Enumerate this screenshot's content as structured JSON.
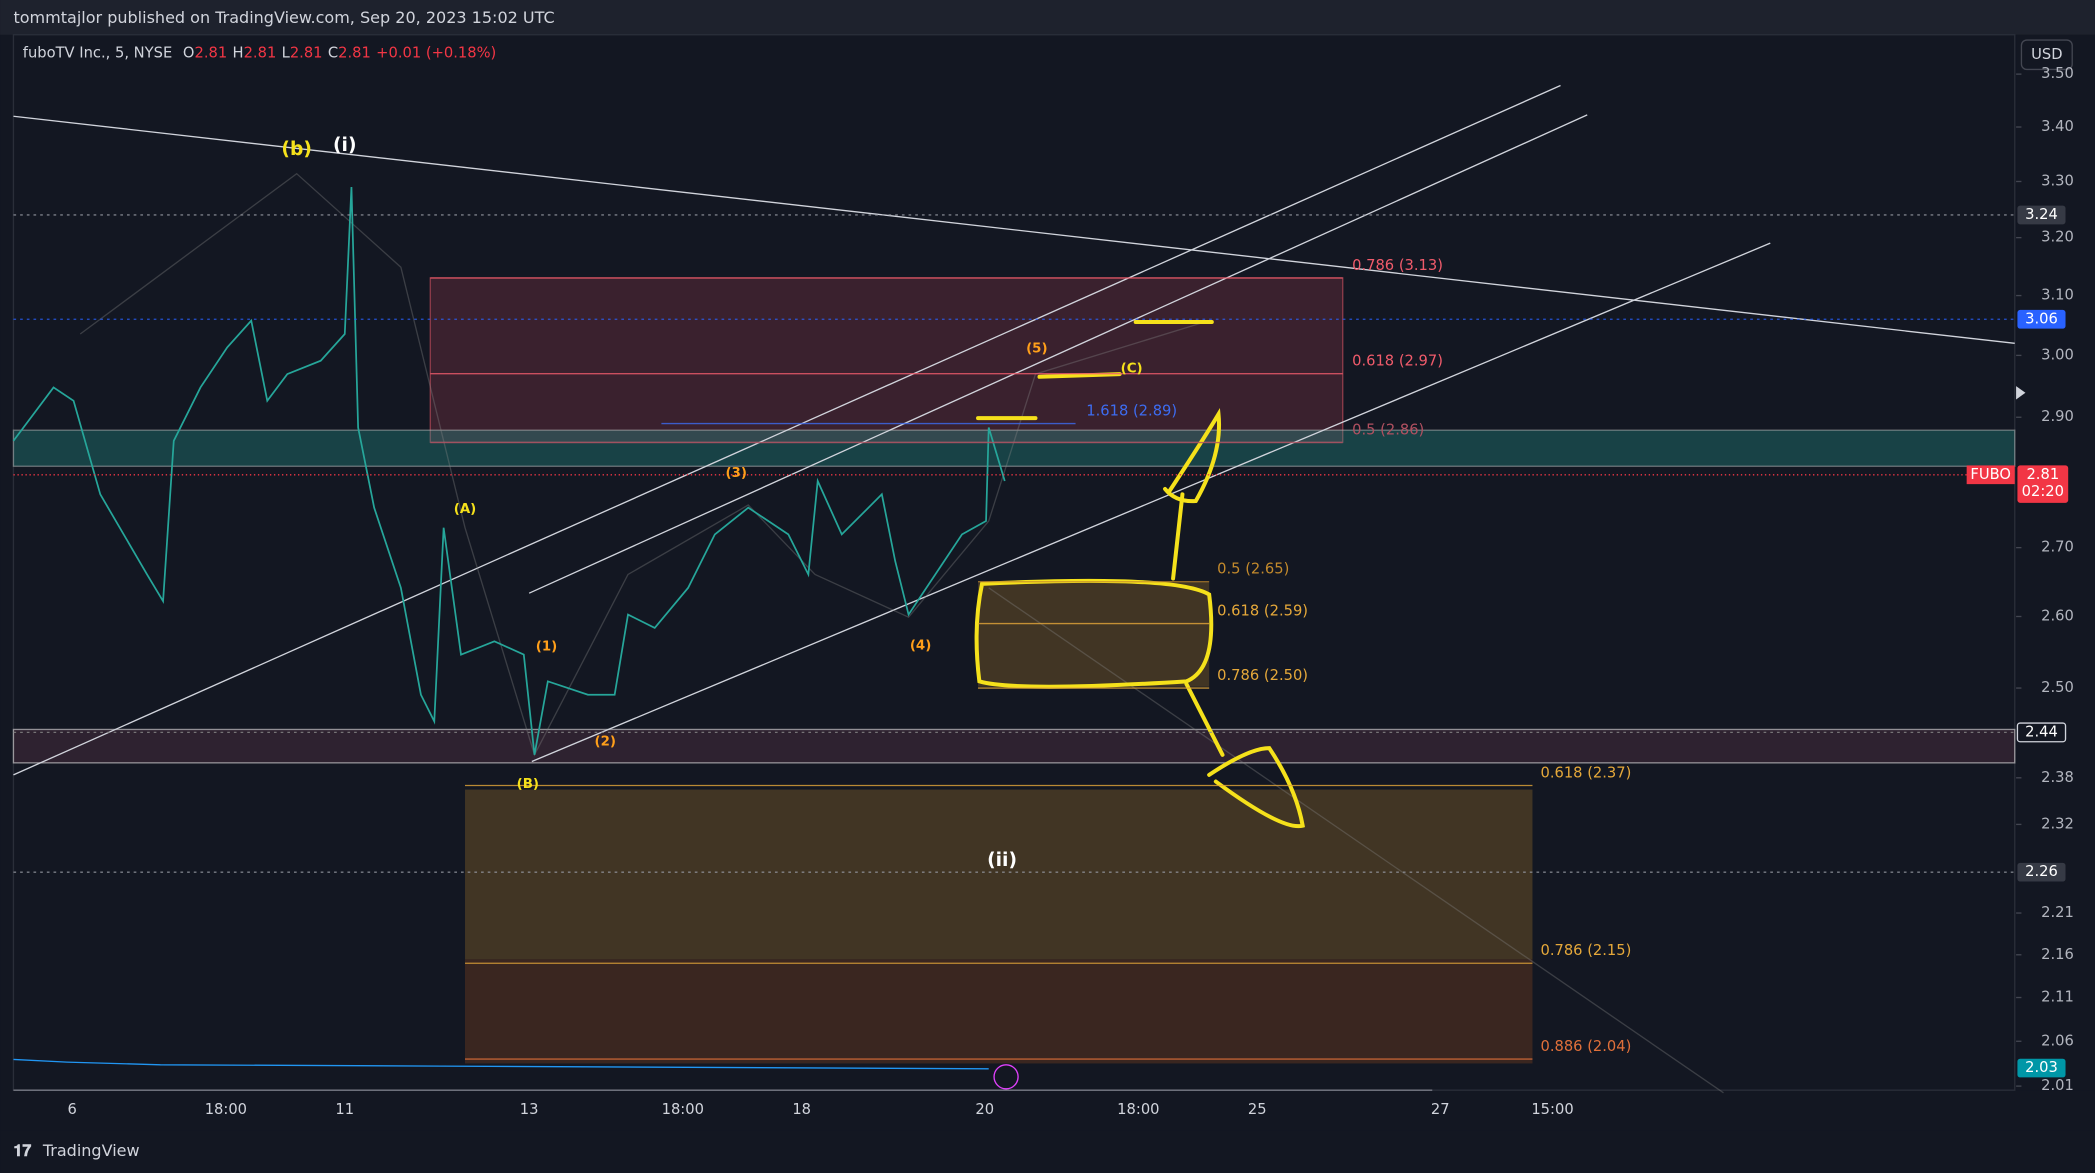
{
  "header": {
    "published": "tommtajlor published on TradingView.com, Sep 20, 2023 15:02 UTC"
  },
  "legend": {
    "symbol": "fuboTV Inc., 5, NYSE",
    "ohlc": [
      {
        "key": "O",
        "value": 2.81
      },
      {
        "key": "H",
        "value": 2.81
      },
      {
        "key": "L",
        "value": 2.81
      },
      {
        "key": "C",
        "value": 2.81
      }
    ],
    "change": "+0.01 (+0.18%)"
  },
  "currency": "USD",
  "price_axis": {
    "log_scale": true,
    "ylim": [
      2.0026,
      3.579
    ],
    "ticks": [
      {
        "value": 3.5,
        "label": "3.50"
      },
      {
        "value": 3.4,
        "label": "3.40"
      },
      {
        "value": 3.3,
        "label": "3.30"
      },
      {
        "value": 3.2,
        "label": "3.20"
      },
      {
        "value": 3.1,
        "label": "3.10"
      },
      {
        "value": 3.0,
        "label": "3.00"
      },
      {
        "value": 2.9,
        "label": "2.90"
      },
      {
        "value": 2.7,
        "label": "2.70"
      },
      {
        "value": 2.6,
        "label": "2.60"
      },
      {
        "value": 2.5,
        "label": "2.50"
      },
      2.38,
      2.32,
      2.21,
      2.16,
      2.11,
      2.06,
      2.01
    ]
  },
  "price_markers": [
    {
      "value": 3.24,
      "color": "#363a45"
    },
    {
      "value": 3.06,
      "color": "#2962ff"
    },
    {
      "value": 2.44,
      "color": "#131722"
    },
    {
      "value": 2.26,
      "color": "#363a45"
    },
    {
      "value": 2.03,
      "color": "#0097a7"
    }
  ],
  "last_price": {
    "symbol": "FUBO",
    "value": 2.81,
    "countdown": "02:20",
    "color": "#f23645"
  },
  "time_axis": {
    "ticks": [
      "6",
      "18:00",
      "11",
      "13",
      "18:00",
      "18",
      "20",
      "18:00",
      "25",
      "27",
      "15:00"
    ]
  },
  "fib_levels": [
    {
      "label": "0.786 (3.13)",
      "price": 3.13,
      "color": "#f05b6b"
    },
    {
      "label": "0.618 (2.97)",
      "price": 2.97,
      "color": "#f05b6b"
    },
    {
      "label": "0.5 (2.86)",
      "price": 2.86,
      "color": "#b05060"
    },
    {
      "label": "1.618 (2.89)",
      "price": 2.89,
      "color": "#3d6cf0"
    },
    {
      "label": "0.5 (2.65)",
      "price": 2.65,
      "color": "#c38a2c"
    },
    {
      "label": "0.618 (2.59)",
      "price": 2.59,
      "color": "#e5a83a"
    },
    {
      "label": "0.786 (2.50)",
      "price": 2.5,
      "color": "#e5a83a"
    },
    {
      "label": "0.618 (2.37)",
      "price": 2.37,
      "color": "#e5a83a"
    },
    {
      "label": "0.786 (2.15)",
      "price": 2.15,
      "color": "#e5a83a"
    },
    {
      "label": "0.886 (2.04)",
      "price": 2.04,
      "color": "#e0703a"
    }
  ],
  "wave_labels": [
    {
      "label": "(b)",
      "color": "#f5e11b"
    },
    {
      "label": "(i)",
      "color": "#ffffff"
    },
    {
      "label": "(A)",
      "color": "#f5e11b"
    },
    {
      "label": "(1)",
      "color": "#ff9f1a"
    },
    {
      "label": "(2)",
      "color": "#ff9f1a"
    },
    {
      "label": "(B)",
      "color": "#f5e11b"
    },
    {
      "label": "(3)",
      "color": "#ff9f1a"
    },
    {
      "label": "(4)",
      "color": "#ff9f1a"
    },
    {
      "label": "(5)",
      "color": "#ff9f1a"
    },
    {
      "label": "(C)",
      "color": "#f5e11b"
    },
    {
      "label": "(ii)",
      "color": "#ffffff"
    }
  ],
  "footer": {
    "brand": "TradingView"
  }
}
